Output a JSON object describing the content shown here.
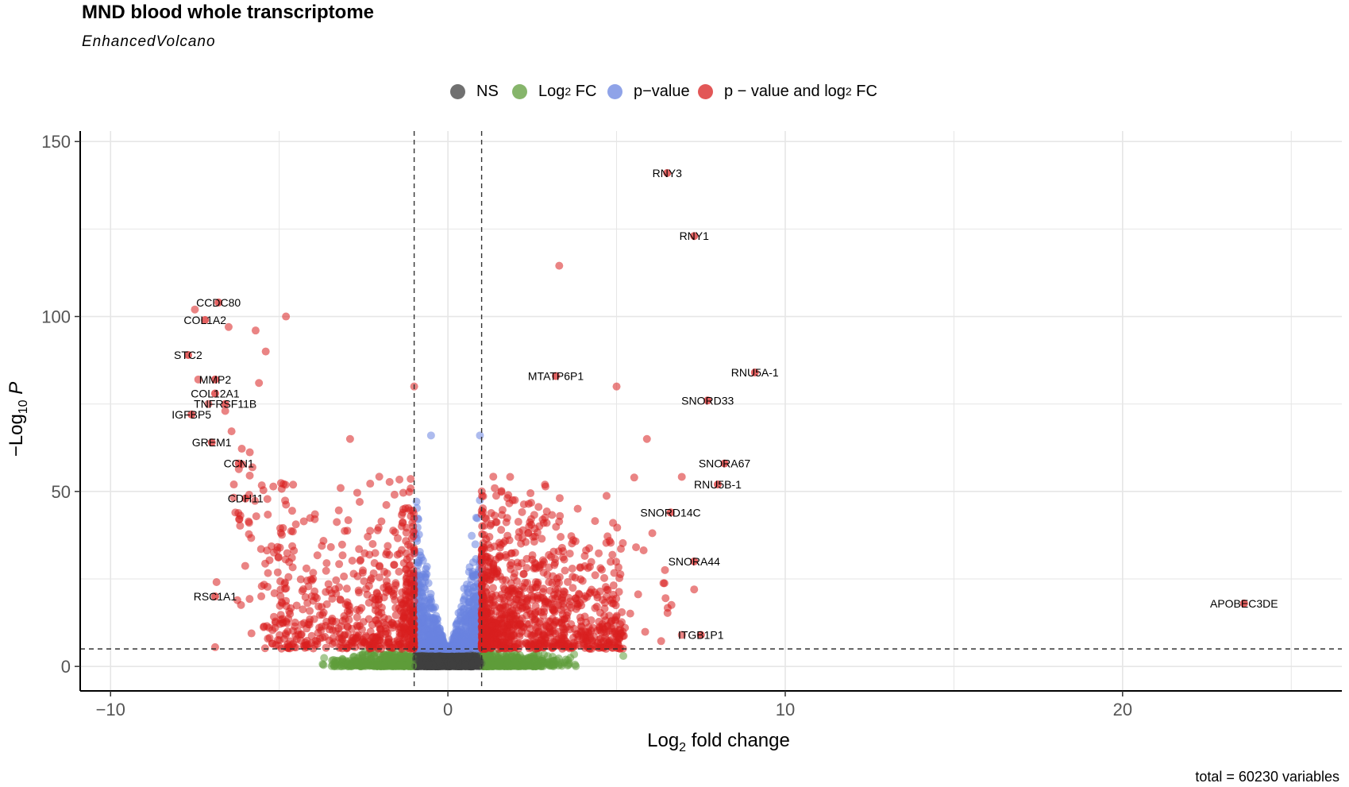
{
  "chart_data": {
    "type": "scatter",
    "title": "MND blood whole transcriptome",
    "subtitle": "EnhancedVolcano",
    "caption": "total = 60230 variables",
    "xlabel_main": "Log",
    "xlabel_sub": "2",
    "xlabel_tail": " fold change",
    "ylabel_pre": "−Log",
    "ylabel_sub": "10",
    "ylabel_tail": " P",
    "xlim": [
      -10.9,
      26.5
    ],
    "ylim": [
      -7,
      153
    ],
    "x_ticks": [
      -10,
      0,
      10,
      20
    ],
    "x_tick_labels": [
      "−10",
      "0",
      "10",
      "20"
    ],
    "y_ticks": [
      0,
      50,
      100,
      150
    ],
    "y_tick_labels": [
      "0",
      "50",
      "100",
      "150"
    ],
    "grid": true,
    "legend_position": "top",
    "fc_cutoff": 1,
    "p_cutoff_neglog10": 5,
    "colors": {
      "NS": "#404040",
      "FC": "#5e9c3a",
      "P": "#6a84e0",
      "FC_P": "#d81f1f",
      "threshold": "#333333",
      "grid": "#e6e6e6"
    },
    "legend": [
      {
        "key": "NS",
        "label": "NS",
        "color": "#404040"
      },
      {
        "key": "FC",
        "label": "Log",
        "sub": "2",
        "tail": " FC",
        "color": "#5e9c3a"
      },
      {
        "key": "P",
        "label": "p−value",
        "color": "#6a84e0"
      },
      {
        "key": "FC_P",
        "label": "p − value and log",
        "sub": "2",
        "tail": " FC",
        "color": "#d81f1f"
      }
    ],
    "labeled_genes": [
      {
        "label": "RNY3",
        "x": 6.5,
        "y": 141
      },
      {
        "label": "RNY1",
        "x": 7.3,
        "y": 123
      },
      {
        "label": "CCDC80",
        "x": -6.8,
        "y": 104
      },
      {
        "label": "COL1A2",
        "x": -7.2,
        "y": 99
      },
      {
        "label": "STC2",
        "x": -7.7,
        "y": 89
      },
      {
        "label": "MMP2",
        "x": -6.9,
        "y": 82
      },
      {
        "label": "MTATP6P1",
        "x": 3.2,
        "y": 83
      },
      {
        "label": "RNU5A-1",
        "x": 9.1,
        "y": 84
      },
      {
        "label": "COL12A1",
        "x": -6.9,
        "y": 78
      },
      {
        "label": "SNORD33",
        "x": 7.7,
        "y": 76
      },
      {
        "label": "TNFRSF11B",
        "x": -6.6,
        "y": 75
      },
      {
        "label": "IGFBP5",
        "x": -7.6,
        "y": 72
      },
      {
        "label": "GREM1",
        "x": -7.0,
        "y": 64
      },
      {
        "label": "SNORA67",
        "x": 8.2,
        "y": 58
      },
      {
        "label": "CCN1",
        "x": -6.2,
        "y": 58
      },
      {
        "label": "RNU5B-1",
        "x": 8.0,
        "y": 52
      },
      {
        "label": "CDH11",
        "x": -6.0,
        "y": 48
      },
      {
        "label": "SNORD14C",
        "x": 6.6,
        "y": 44
      },
      {
        "label": "SNORA44",
        "x": 7.3,
        "y": 30
      },
      {
        "label": "RSC1A1",
        "x": -6.9,
        "y": 20
      },
      {
        "label": "APOBEC3DE",
        "x": 23.6,
        "y": 18
      },
      {
        "label": "ITGB1P1",
        "x": 7.5,
        "y": 9
      }
    ],
    "notable_points": [
      {
        "x": 3.3,
        "y": 114.5
      },
      {
        "x": -4.8,
        "y": 100
      },
      {
        "x": -7.5,
        "y": 102
      },
      {
        "x": -6.5,
        "y": 97
      },
      {
        "x": -5.7,
        "y": 96
      },
      {
        "x": -5.4,
        "y": 90
      },
      {
        "x": -7.4,
        "y": 82
      },
      {
        "x": -5.6,
        "y": 81
      },
      {
        "x": 5.0,
        "y": 80
      },
      {
        "x": -7.1,
        "y": 75
      },
      {
        "x": -6.6,
        "y": 73
      },
      {
        "x": -2.9,
        "y": 65
      },
      {
        "x": 5.9,
        "y": 65
      },
      {
        "x": 7.3,
        "y": 22
      },
      {
        "x": -6.9,
        "y": 5.5
      },
      {
        "x": 5.1,
        "y": 5
      },
      {
        "x": 5.2,
        "y": 3
      },
      {
        "x": -1.0,
        "y": 80
      },
      {
        "x": -0.5,
        "y": 66
      },
      {
        "x": 0.95,
        "y": 66
      }
    ]
  }
}
